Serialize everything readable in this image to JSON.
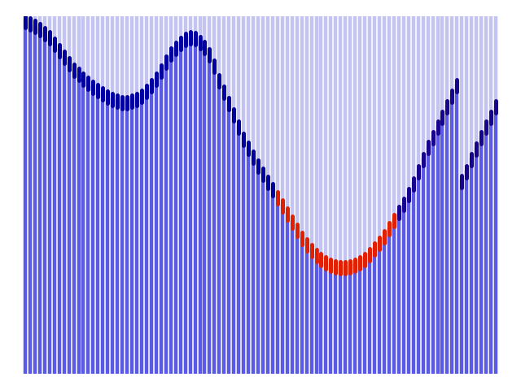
{
  "chart_data": {
    "type": "wiggle",
    "x": [
      0,
      1,
      2,
      3,
      4,
      5,
      6,
      7,
      8,
      9,
      10,
      11,
      12,
      13,
      14,
      15,
      16,
      17,
      18,
      19,
      20,
      21,
      22,
      23,
      24,
      25,
      26,
      27,
      28,
      29,
      30,
      31,
      32,
      33,
      34,
      35,
      36,
      37,
      38,
      39,
      40,
      41,
      42,
      43,
      44,
      45,
      46,
      47,
      48,
      49,
      50,
      51,
      52,
      53,
      54,
      55,
      56,
      57,
      58,
      59,
      60,
      61,
      62,
      63,
      64,
      65,
      66,
      67,
      68,
      69,
      70,
      71,
      72,
      73,
      74,
      75,
      76,
      77,
      78,
      79,
      80,
      81,
      82,
      83,
      84,
      85,
      86,
      87,
      88,
      89,
      90,
      91,
      92,
      93,
      94,
      95,
      96,
      97
    ],
    "values": [
      5,
      8,
      11,
      15,
      20,
      25,
      33,
      41,
      49,
      57,
      65,
      70,
      76,
      81,
      86,
      90,
      94,
      98,
      101,
      103,
      105,
      105,
      103,
      101,
      97,
      91,
      84,
      76,
      66,
      55,
      45,
      38,
      32,
      27,
      25,
      26,
      31,
      37,
      46,
      60,
      78,
      92,
      106,
      120,
      135,
      150,
      161,
      172,
      183,
      193,
      203,
      212,
      222,
      232,
      242,
      252,
      262,
      272,
      280,
      287,
      293,
      298,
      302,
      305,
      307,
      308,
      308,
      307,
      305,
      302,
      298,
      292,
      285,
      278,
      270,
      260,
      250,
      240,
      230,
      218,
      205,
      190,
      175,
      160,
      148,
      135,
      123,
      110,
      97,
      84,
      202,
      190,
      175,
      162,
      148,
      135,
      123,
      110
    ],
    "amplitude": [
      0.5,
      0.5,
      0.5,
      0.5,
      0.5,
      0.5,
      0.5,
      0.5,
      0.5,
      0.5,
      0.5,
      0.5,
      0.5,
      0.5,
      0.5,
      0.5,
      0.5,
      0.5,
      0.5,
      0.5,
      0.5,
      0.5,
      0.5,
      0.5,
      0.5,
      0.5,
      0.5,
      0.5,
      0.5,
      0.5,
      0.5,
      0.5,
      0.5,
      0.5,
      0.5,
      0.5,
      0.5,
      0.5,
      0.5,
      0.6,
      0.6,
      0.6,
      0.6,
      0.6,
      0.6,
      0.6,
      0.6,
      0.6,
      0.6,
      0.6,
      0.6,
      0.6,
      1.0,
      1.0,
      1.0,
      1.0,
      1.0,
      1.0,
      1.0,
      1.0,
      1.0,
      1.0,
      1.0,
      1.0,
      1.0,
      1.0,
      1.0,
      1.0,
      1.0,
      1.0,
      1.0,
      1.0,
      1.0,
      1.0,
      1.0,
      1.0,
      1.0,
      0.7,
      0.7,
      0.7,
      0.7,
      0.7,
      0.7,
      0.7,
      0.7,
      0.7,
      0.7,
      0.7,
      0.7,
      0.7,
      0.7,
      0.7,
      0.7,
      0.7,
      0.7,
      0.7,
      0.7,
      0.7
    ],
    "xlim": [
      -0.5,
      97.5
    ],
    "ylim": [
      440,
      0
    ],
    "tick_labels": false
  }
}
